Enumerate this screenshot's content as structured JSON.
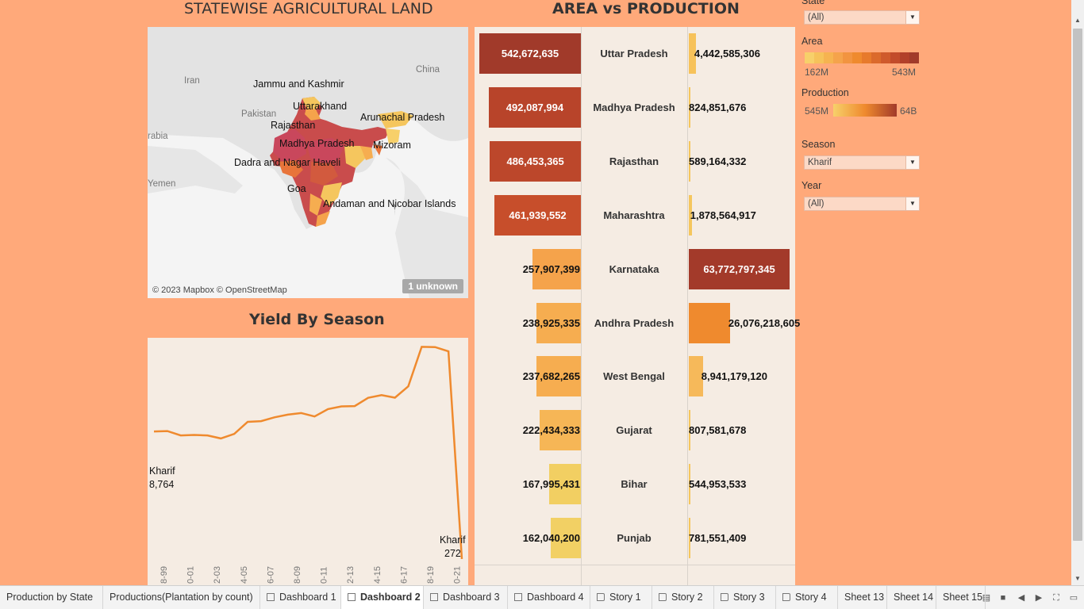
{
  "map_panel": {
    "title": "STATEWISE AGRICULTURAL LAND",
    "labels": [
      {
        "name": "Jammu and Kashmir"
      },
      {
        "name": "Uttarakhand"
      },
      {
        "name": "Rajasthan"
      },
      {
        "name": "Arunachal Pradesh"
      },
      {
        "name": "Madhya Pradesh"
      },
      {
        "name": "Mizoram"
      },
      {
        "name": "Dadra and Nagar Haveli"
      },
      {
        "name": "Goa"
      },
      {
        "name": "Andaman and Nicobar Islands"
      }
    ],
    "basemap_labels": [
      "Iran",
      "China",
      "Pakistan",
      "rabia",
      "Yemen"
    ],
    "credit": "© 2023 Mapbox © OpenStreetMap",
    "unknown_badge": "1 unknown"
  },
  "bars_panel": {
    "title": "AREA vs PRODUCTION",
    "rows": [
      {
        "state": "Uttar Pradesh",
        "area": 542672635,
        "area_label": "542,672,635",
        "production": 4442585306,
        "production_label": "4,442,585,306",
        "area_color": "#a13a2a",
        "prod_color": "#f7c25a"
      },
      {
        "state": "Madhya Pradesh",
        "area": 492087994,
        "area_label": "492,087,994",
        "production": 824851676,
        "production_label": "824,851,676",
        "area_color": "#b8442a",
        "prod_color": "#f5c65e"
      },
      {
        "state": "Rajasthan",
        "area": 486453365,
        "area_label": "486,453,365",
        "production": 589164332,
        "production_label": "589,164,332",
        "area_color": "#bc472b",
        "prod_color": "#f5c65e"
      },
      {
        "state": "Maharashtra",
        "area": 461939552,
        "area_label": "461,939,552",
        "production": 1878564917,
        "production_label": "1,878,564,917",
        "area_color": "#c74e2b",
        "prod_color": "#f5c65e"
      },
      {
        "state": "Karnataka",
        "area": 257907399,
        "area_label": "257,907,399",
        "production": 63772797345,
        "production_label": "63,772,797,345",
        "area_color": "#f5a34b",
        "prod_color": "#a33a2a"
      },
      {
        "state": "Andhra Pradesh",
        "area": 238925335,
        "area_label": "238,925,335",
        "production": 26076218605,
        "production_label": "26,076,218,605",
        "area_color": "#f6ad50",
        "prod_color": "#ef8a2e"
      },
      {
        "state": "West Bengal",
        "area": 237682265,
        "area_label": "237,682,265",
        "production": 8941179120,
        "production_label": "8,941,179,120",
        "area_color": "#f6ad50",
        "prod_color": "#f6b95a"
      },
      {
        "state": "Gujarat",
        "area": 222434333,
        "area_label": "222,434,333",
        "production": 807581678,
        "production_label": "807,581,678",
        "area_color": "#f6b656",
        "prod_color": "#f5c65e"
      },
      {
        "state": "Bihar",
        "area": 167995431,
        "area_label": "167,995,431",
        "production": 544953533,
        "production_label": "544,953,533",
        "area_color": "#f2cf62",
        "prod_color": "#f5c65e"
      },
      {
        "state": "Punjab",
        "area": 162040200,
        "area_label": "162,040,200",
        "production": 781551409,
        "production_label": "781,551,409",
        "area_color": "#f2d064",
        "prod_color": "#f5c65e"
      }
    ]
  },
  "line_panel": {
    "title": "Yield By Season",
    "start_annotation": {
      "season": "Kharif",
      "value": "8,764"
    },
    "end_annotation": {
      "season": "Kharif",
      "value": "272"
    }
  },
  "chart_data": {
    "type": "line",
    "title": "Yield By Season",
    "series": [
      {
        "name": "Kharif",
        "values": [
          8764,
          8790,
          8500,
          8530,
          8500,
          8300,
          8600,
          9400,
          9450,
          9700,
          9880,
          9990,
          9760,
          10250,
          10430,
          10450,
          11000,
          11180,
          11010,
          11770,
          14400,
          14380,
          14100,
          272
        ]
      }
    ],
    "x_tick_labels": [
      "8-99",
      "0-01",
      "2-03",
      "4-05",
      "6-07",
      "8-09",
      "0-11",
      "2-13",
      "4-15",
      "6-17",
      "8-19",
      "0-21"
    ],
    "line_color": "#ef8a2e"
  },
  "filters": {
    "state": {
      "label": "State",
      "value": "(All)"
    },
    "area_legend": {
      "label": "Area",
      "min": "162M",
      "max": "543M"
    },
    "production_legend": {
      "label": "Production",
      "min": "545M",
      "max": "64B"
    },
    "season": {
      "label": "Season",
      "value": "Kharif"
    },
    "year": {
      "label": "Year",
      "value": "(All)"
    }
  },
  "tabs": [
    {
      "label": "Production by State",
      "icon": "none",
      "active": false
    },
    {
      "label": "Productions(Plantation by count)",
      "icon": "none",
      "active": false
    },
    {
      "label": "Dashboard 1",
      "icon": "dashboard",
      "active": false
    },
    {
      "label": "Dashboard 2",
      "icon": "dashboard",
      "active": true
    },
    {
      "label": "Dashboard 3",
      "icon": "dashboard",
      "active": false
    },
    {
      "label": "Dashboard 4",
      "icon": "dashboard",
      "active": false
    },
    {
      "label": "Story 1",
      "icon": "story",
      "active": false
    },
    {
      "label": "Story 2",
      "icon": "story",
      "active": false
    },
    {
      "label": "Story 3",
      "icon": "story",
      "active": false
    },
    {
      "label": "Story 4",
      "icon": "story",
      "active": false
    },
    {
      "label": "Sheet 13",
      "icon": "none",
      "active": false
    },
    {
      "label": "Sheet 14",
      "icon": "none",
      "active": false
    },
    {
      "label": "Sheet 15",
      "icon": "none",
      "active": false
    }
  ]
}
